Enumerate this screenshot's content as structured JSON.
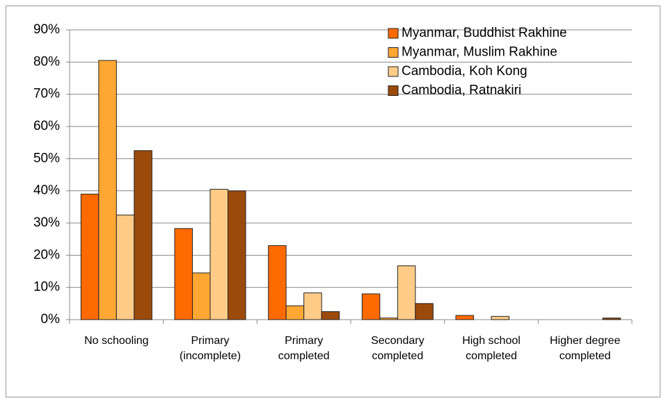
{
  "chart_data": {
    "type": "bar",
    "categories": [
      "No schooling",
      "Primary\n(incomplete)",
      "Primary\ncompleted",
      "Secondary\ncompleted",
      "High school\ncompleted",
      "Higher degree\ncompleted"
    ],
    "series": [
      {
        "name": "Myanmar, Buddhist Rakhine",
        "color": "#ff6a00",
        "values": [
          39,
          28.3,
          23,
          8,
          1.3,
          0
        ]
      },
      {
        "name": "Myanmar, Muslim Rakhine",
        "color": "#ffa733",
        "values": [
          80.5,
          14.5,
          4.3,
          0.5,
          0,
          0
        ]
      },
      {
        "name": "Cambodia, Koh Kong",
        "color": "#ffcc88",
        "values": [
          32.5,
          40.5,
          8.3,
          16.7,
          1,
          0
        ]
      },
      {
        "name": "Cambodia, Ratnakiri",
        "color": "#9c4a0a",
        "values": [
          52.5,
          40,
          2.5,
          5,
          0,
          0.5
        ]
      }
    ],
    "ylim": [
      0,
      90
    ],
    "yticks": [
      {
        "value": 0,
        "label": "0%"
      },
      {
        "value": 10,
        "label": "10%"
      },
      {
        "value": 20,
        "label": "20%"
      },
      {
        "value": 30,
        "label": "30%"
      },
      {
        "value": 40,
        "label": "40%"
      },
      {
        "value": 50,
        "label": "50%"
      },
      {
        "value": 60,
        "label": "60%"
      },
      {
        "value": 70,
        "label": "70%"
      },
      {
        "value": 80,
        "label": "80%"
      },
      {
        "value": 90,
        "label": "90%"
      }
    ],
    "grid": true,
    "legend": "top-right"
  }
}
